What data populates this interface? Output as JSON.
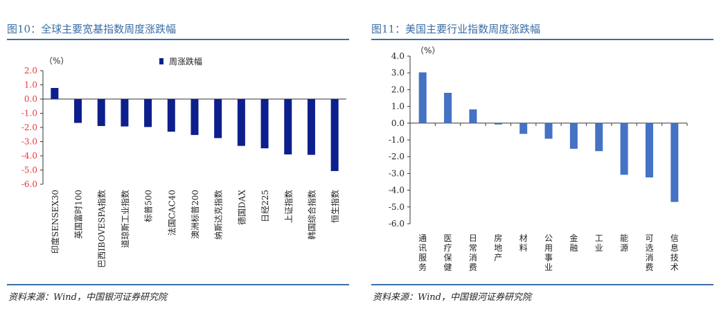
{
  "left_panel": {
    "title": "图10：全球主要宽基指数周度涨跌幅",
    "source": "资料来源：Wind，中国银河证券研究院"
  },
  "right_panel": {
    "title": "图11：美国主要行业指数周度涨跌幅",
    "source": "资料来源：Wind，中国银河证券研究院"
  },
  "colors": {
    "left_bar": "#0d1f8c",
    "right_bar": "#4472c4",
    "title": "#3a6ea5",
    "left_ytick": "#e8383d"
  },
  "chart_data": [
    {
      "type": "bar",
      "title": "图10：全球主要宽基指数周度涨跌幅",
      "unit_label": "（%）",
      "legend": [
        "周涨跌幅"
      ],
      "legend_position": "top-right",
      "categories": [
        "印度SENSEX30",
        "英国富时100",
        "巴西IBOVESPA指数",
        "道琼斯工业指数",
        "标普500",
        "法国CAC40",
        "澳洲标普200",
        "纳斯达克指数",
        "德国DAX",
        "日经225",
        "上证指数",
        "韩国综合指数",
        "恒生指数"
      ],
      "values": [
        0.78,
        -1.68,
        -1.9,
        -1.93,
        -1.97,
        -2.3,
        -2.53,
        -2.75,
        -3.3,
        -3.47,
        -3.9,
        -3.93,
        -5.07
      ],
      "yticks": [
        "2.0",
        "1.0",
        "0.0",
        "-1.0",
        "-2.0",
        "-3.0",
        "-4.0",
        "-5.0",
        "-6.0"
      ],
      "ylim": [
        -6,
        2
      ],
      "grid": false
    },
    {
      "type": "bar",
      "title": "图11：美国主要行业指数周度涨跌幅",
      "unit_label": "（%）",
      "categories": [
        "通讯服务",
        "医疗保健",
        "日常消费",
        "房地产",
        "材料",
        "公用事业",
        "金融",
        "工业",
        "能源",
        "可选消费",
        "信息技术"
      ],
      "values": [
        3.03,
        1.81,
        0.82,
        -0.08,
        -0.64,
        -0.93,
        -1.53,
        -1.67,
        -3.08,
        -3.24,
        -4.7
      ],
      "yticks": [
        "4.0",
        "3.0",
        "2.0",
        "1.0",
        "0.0",
        "-1.0",
        "-2.0",
        "-3.0",
        "-4.0",
        "-5.0",
        "-6.0"
      ],
      "ylim": [
        -6,
        4
      ],
      "grid": false
    }
  ]
}
